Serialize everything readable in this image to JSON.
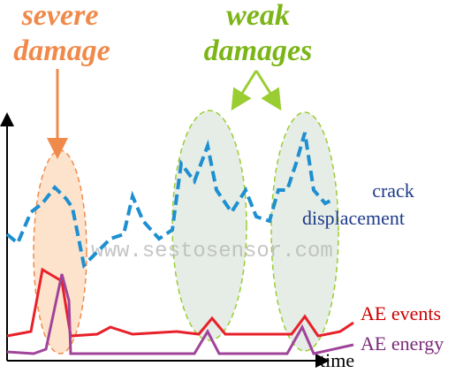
{
  "annotations": {
    "severe": [
      "severe",
      "damage"
    ],
    "weak": [
      "weak",
      "damages"
    ]
  },
  "series_labels": {
    "crack": [
      "crack",
      "displacement"
    ],
    "events": "AE events",
    "energy": "AE energy"
  },
  "x_axis_label": "time",
  "watermark": "www.sestosensor.com"
}
